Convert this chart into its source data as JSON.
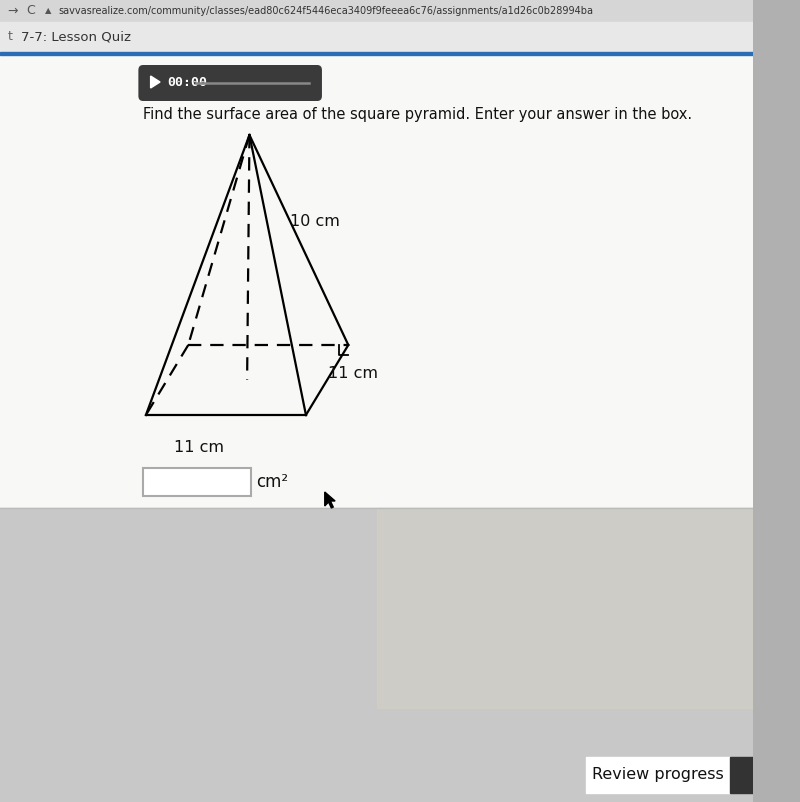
{
  "bg_top_color": "#b0b0b0",
  "browser_bar_color": "#d8d8d8",
  "tab_bar_color": "#e0e0e0",
  "blue_underline_color": "#2a6db5",
  "white_content_bg": "#f5f5f5",
  "url_text": "savvasrealize.com/community/classes/ead80c624f5446eca3409f9feeea6c76/assignments/a1d26c0b28994ba",
  "tab_text": "7-7: Lesson Quiz",
  "timer_text": "00:00",
  "timer_bg": "#3a3a3a",
  "problem_text": "Find the surface area of the square pyramid. Enter your answer in the box.",
  "label_10cm": "10 cm",
  "label_11cm_right": "11 cm",
  "label_11cm_bottom": "11 cm",
  "unit_label": "cm²",
  "review_button_text": "Review progress",
  "pyramid_color": "#000000",
  "input_box_border": "#aaaaaa",
  "bottom_gray": "#c8c8c8",
  "review_btn_bg": "#ffffff",
  "arrow_cursor_color": "#000000"
}
